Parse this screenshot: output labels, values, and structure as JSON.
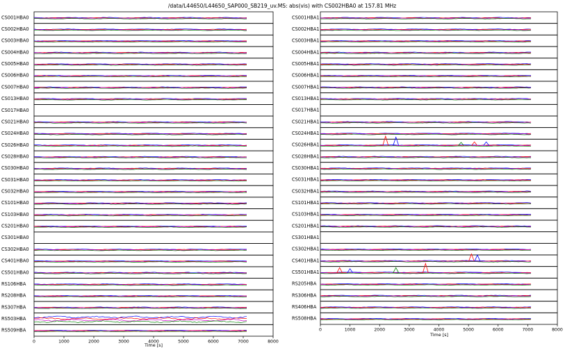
{
  "chart_data": [
    {
      "type": "line",
      "title": "/data/L44650/L44650_SAP000_SB219_uv.MS: abs(vis) with CS002HBA0 at 157.81 MHz",
      "xlabel": "Time [s]",
      "ylabel": "",
      "xlim": [
        0,
        8000
      ],
      "xticks": [
        0,
        1000,
        2000,
        3000,
        4000,
        5000,
        6000,
        7000,
        8000
      ],
      "data_end": 7150,
      "grid": false,
      "stations": [
        "CS001HBA0",
        "CS002HBA0",
        "CS003HBA0",
        "CS004HBA0",
        "CS005HBA0",
        "CS006HBA0",
        "CS007HBA0",
        "CS013HBA0",
        "CS017HBA0",
        "CS021HBA0",
        "CS024HBA0",
        "CS026HBA0",
        "CS028HBA0",
        "CS030HBA0",
        "CS031HBA0",
        "CS032HBA0",
        "CS101HBA0",
        "CS103HBA0",
        "CS201HBA0",
        "CS301HBA0",
        "CS302HBA0",
        "CS401HBA0",
        "CS501HBA0",
        "RS106HBA",
        "RS208HBA",
        "RS307HBA",
        "RS503HBA",
        "RS509HBA"
      ],
      "empty_panels": [
        "CS017HBA0",
        "CS301HBA0"
      ],
      "noisy_panels": [
        "RS503HBA"
      ],
      "series_colors": [
        "#0000ff",
        "#ff0000",
        "#cc00cc",
        "#008000"
      ],
      "level": 0.55
    },
    {
      "type": "line",
      "xlabel": "Time [s]",
      "ylabel": "",
      "xlim": [
        0,
        8000
      ],
      "xticks": [
        0,
        1000,
        2000,
        3000,
        4000,
        5000,
        6000,
        7000,
        8000
      ],
      "data_end": 7150,
      "grid": false,
      "stations": [
        "CS001HBA1",
        "CS002HBA1",
        "CS003HBA1",
        "CS004HBA1",
        "CS005HBA1",
        "CS006HBA1",
        "CS007HBA1",
        "CS013HBA1",
        "CS017HBA1",
        "CS021HBA1",
        "CS024HBA1",
        "CS026HBA1",
        "CS028HBA1",
        "CS030HBA1",
        "CS031HBA1",
        "CS032HBA1",
        "CS101HBA1",
        "CS103HBA1",
        "CS201HBA1",
        "CS301HBA1",
        "CS302HBA1",
        "CS401HBA1",
        "CS501HBA1",
        "RS205HBA",
        "RS306HBA",
        "RS406HBA",
        "RS508HBA"
      ],
      "empty_panels": [
        "CS017HBA1",
        "CS301HBA1"
      ],
      "spiky_panels": [
        "CS026HBA1",
        "CS401HBA1",
        "CS501HBA1"
      ],
      "series_colors": [
        "#0000ff",
        "#ff0000",
        "#cc00cc",
        "#008000"
      ],
      "level": 0.55
    }
  ]
}
